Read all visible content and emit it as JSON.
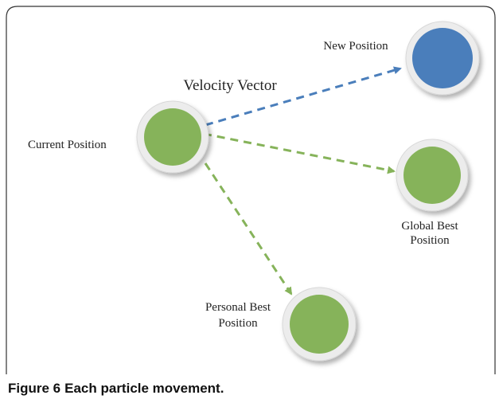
{
  "nodes": [
    {
      "label": [
        "Current Position"
      ]
    },
    {
      "label": [
        "New Position"
      ]
    },
    {
      "label": [
        "Global Best",
        "Position"
      ]
    },
    {
      "label": [
        "Personal Best",
        "Position"
      ]
    }
  ],
  "edges": [
    {
      "label": "Velocity Vector"
    }
  ],
  "caption": {
    "number": "Figure 6",
    "text": "Each particle movement."
  }
}
